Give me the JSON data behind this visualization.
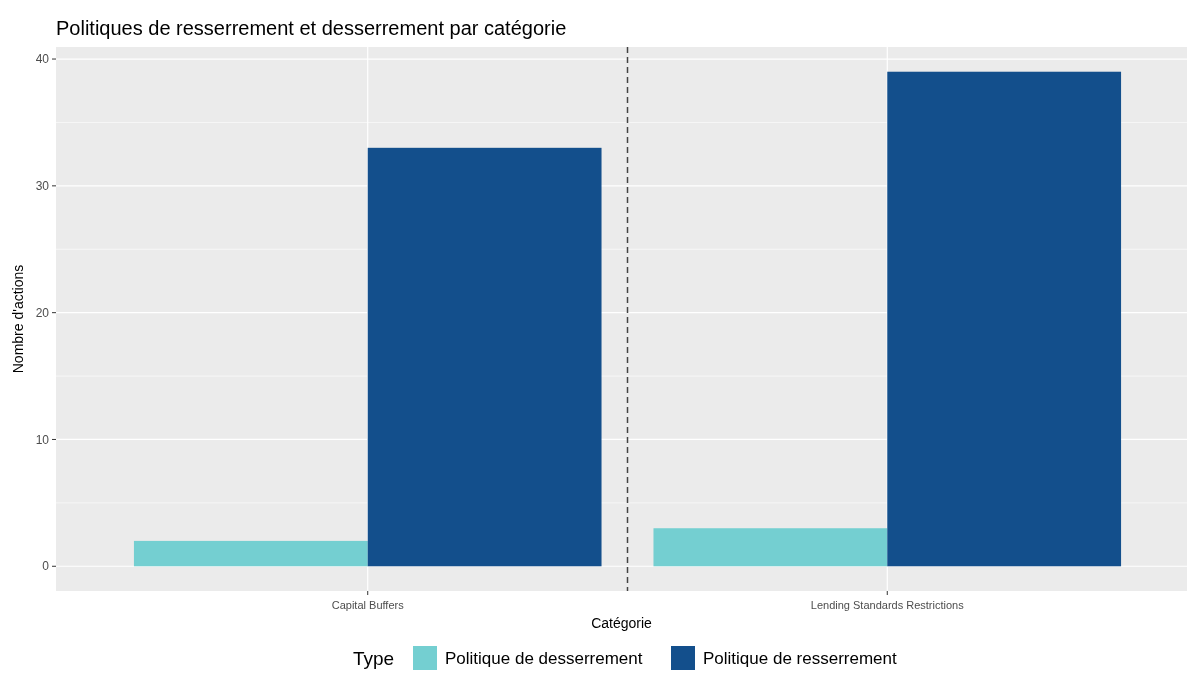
{
  "chart_data": {
    "type": "bar",
    "title": "Politiques de resserrement et desserrement par catégorie",
    "xlabel": "Catégorie",
    "ylabel": "Nombre d'actions",
    "legend_title": "Type",
    "categories": [
      "Capital Buffers",
      "Lending Standards Restrictions"
    ],
    "series": [
      {
        "name": "Politique de desserrement",
        "color": "#74cfd1",
        "values": [
          2,
          3
        ]
      },
      {
        "name": "Politique de resserrement",
        "color": "#134f8c",
        "values": [
          33,
          39
        ]
      }
    ],
    "ylim": [
      -1.95,
      40.95
    ],
    "yticks": [
      0,
      10,
      20,
      30,
      40
    ],
    "grid": true,
    "legend": "bottom"
  }
}
